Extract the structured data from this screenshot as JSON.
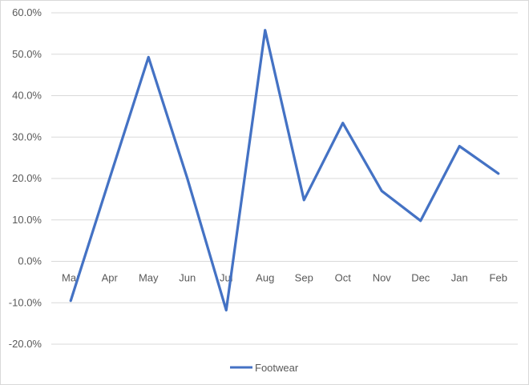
{
  "chart_data": {
    "type": "line",
    "categories": [
      "Mar",
      "Apr",
      "May",
      "Jun",
      "Jul",
      "Aug",
      "Sep",
      "Oct",
      "Nov",
      "Dec",
      "Jan",
      "Feb"
    ],
    "series": [
      {
        "name": "Footwear",
        "values": [
          -9.5,
          20.0,
          49.3,
          20.0,
          -11.8,
          55.8,
          14.8,
          33.4,
          17.0,
          9.8,
          27.8,
          21.2
        ],
        "color": "#4472c4"
      }
    ],
    "yticks": [
      "-20.0%",
      "-10.0%",
      "0.0%",
      "10.0%",
      "20.0%",
      "30.0%",
      "40.0%",
      "50.0%",
      "60.0%"
    ],
    "ylim": [
      -20,
      60
    ],
    "grid": true,
    "legend": "bottom",
    "colors": {
      "gridline": "#d9d9d9",
      "text": "#595959"
    }
  }
}
